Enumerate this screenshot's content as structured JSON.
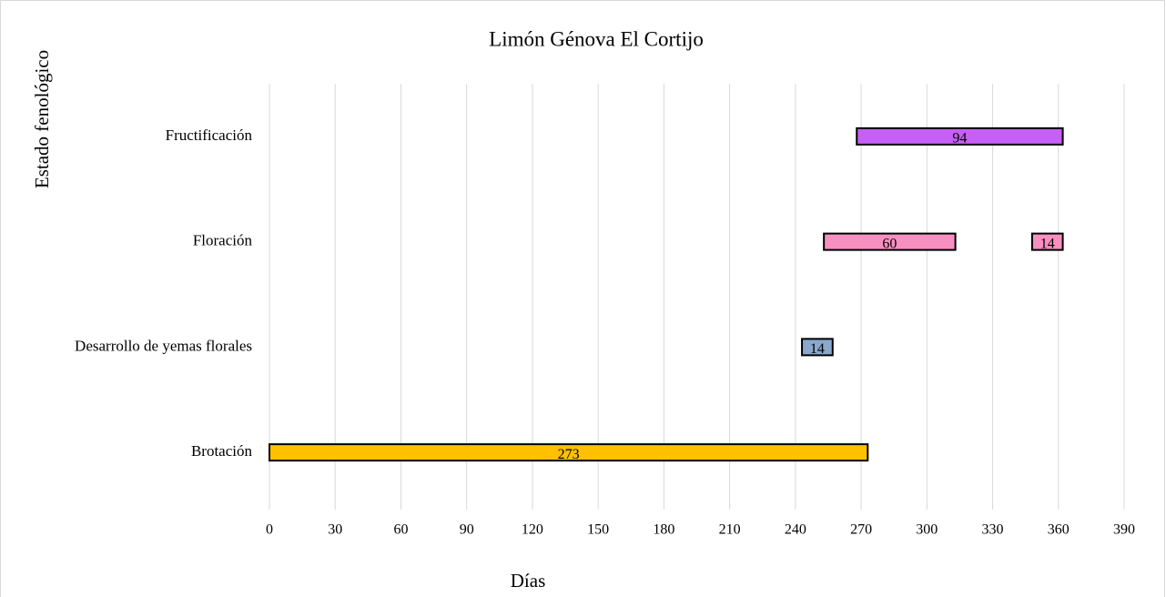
{
  "chart_data": {
    "type": "floating-bar",
    "title": "Limón Génova El Cortijo",
    "x_label": "Días",
    "y_label": "Estado fenológico",
    "categories": [
      {
        "label": "Fructificación",
        "color": "#c65ff5",
        "segments": [
          {
            "start": 268,
            "duration": 94
          }
        ]
      },
      {
        "label": "Floración",
        "color": "#f78fc0",
        "segments": [
          {
            "start": 253,
            "duration": 60
          },
          {
            "start": 348,
            "duration": 14
          }
        ]
      },
      {
        "label": "Desarrollo de yemas florales",
        "color": "#8aa8cc",
        "segments": [
          {
            "start": 243,
            "duration": 14
          }
        ]
      },
      {
        "label": "Brotación",
        "color": "#ffc000",
        "segments": [
          {
            "start": 0,
            "duration": 273
          }
        ]
      }
    ],
    "xlim": [
      0,
      390
    ],
    "xticks": [
      0,
      30,
      60,
      90,
      120,
      150,
      180,
      210,
      240,
      270,
      300,
      330,
      360,
      390
    ],
    "grid": true
  }
}
